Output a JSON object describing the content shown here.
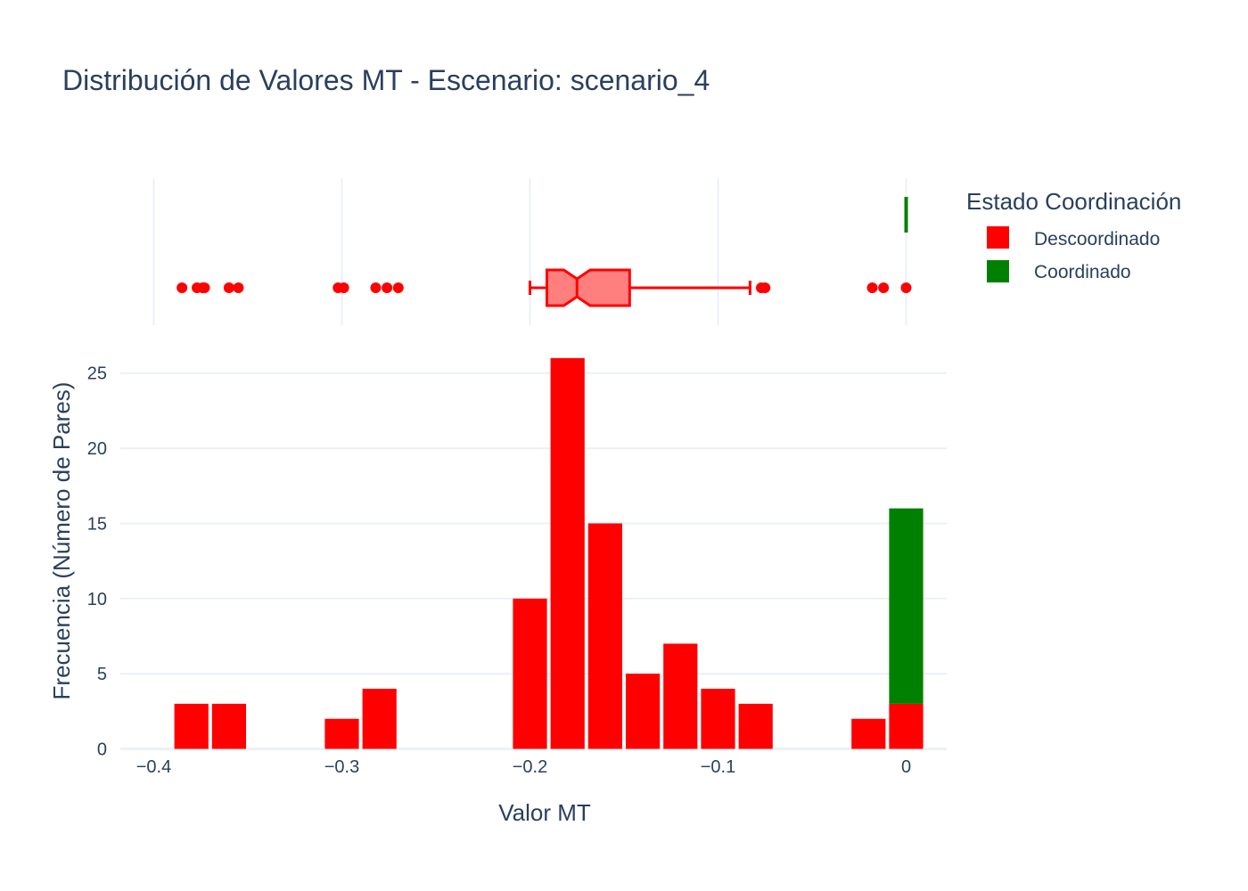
{
  "chart_data": {
    "type": "bar",
    "title": "Distribución de Valores MT - Escenario: scenario_4",
    "xlabel": "Valor MT",
    "ylabel": "Frecuencia (Número de Pares)",
    "xlim": [
      -0.4,
      0.02
    ],
    "ylim": [
      0,
      27
    ],
    "xticks": [
      -0.4,
      -0.3,
      -0.2,
      -0.1,
      0
    ],
    "xtick_labels": [
      "−0.4",
      "−0.3",
      "−0.2",
      "−0.1",
      "0"
    ],
    "yticks": [
      0,
      5,
      10,
      15,
      20,
      25
    ],
    "ytick_labels": [
      "0",
      "5",
      "10",
      "15",
      "20",
      "25"
    ],
    "bin_width": 0.02,
    "barmode": "stack",
    "grid": true,
    "legend": {
      "title": "Estado Coordinación",
      "placement": "right",
      "entries": [
        {
          "name": "Descoordinado",
          "color": "#ff0000"
        },
        {
          "name": "Coordinado",
          "color": "#008000"
        }
      ]
    },
    "series": [
      {
        "name": "Descoordinado",
        "color": "#ff0000",
        "bins": [
          {
            "x0": -0.39,
            "x1": -0.37,
            "count": 3
          },
          {
            "x0": -0.37,
            "x1": -0.35,
            "count": 3
          },
          {
            "x0": -0.31,
            "x1": -0.29,
            "count": 2
          },
          {
            "x0": -0.29,
            "x1": -0.27,
            "count": 4
          },
          {
            "x0": -0.21,
            "x1": -0.19,
            "count": 10
          },
          {
            "x0": -0.19,
            "x1": -0.17,
            "count": 26
          },
          {
            "x0": -0.17,
            "x1": -0.15,
            "count": 15
          },
          {
            "x0": -0.15,
            "x1": -0.13,
            "count": 5
          },
          {
            "x0": -0.13,
            "x1": -0.11,
            "count": 7
          },
          {
            "x0": -0.11,
            "x1": -0.09,
            "count": 4
          },
          {
            "x0": -0.09,
            "x1": -0.07,
            "count": 3
          },
          {
            "x0": -0.03,
            "x1": -0.01,
            "count": 2
          },
          {
            "x0": -0.01,
            "x1": 0.01,
            "count": 3
          }
        ],
        "box": {
          "whisker_low": -0.2,
          "q1": -0.191,
          "median": -0.175,
          "notch_low": -0.182,
          "notch_high": -0.168,
          "q3": -0.147,
          "whisker_high": -0.083,
          "outliers": [
            -0.385,
            -0.377,
            -0.374,
            -0.373,
            -0.36,
            -0.355,
            -0.302,
            -0.299,
            -0.282,
            -0.276,
            -0.27,
            -0.077,
            -0.075,
            -0.018,
            -0.012,
            0
          ]
        }
      },
      {
        "name": "Coordinado",
        "color": "#008000",
        "bins": [
          {
            "x0": -0.01,
            "x1": 0.01,
            "count": 13
          }
        ],
        "box": {
          "whisker_low": 0,
          "q1": 0,
          "median": 0,
          "q3": 0,
          "whisker_high": 0,
          "outliers": []
        }
      }
    ]
  }
}
